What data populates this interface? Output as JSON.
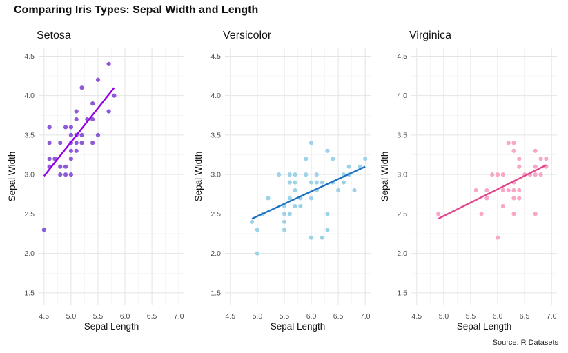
{
  "title": "Comparing Iris Types: Sepal Width and Length",
  "caption": "Source: R Datasets",
  "chart_data": [
    {
      "type": "scatter",
      "title": "Setosa",
      "xlabel": "Sepal Length",
      "ylabel": "Sepal Width",
      "xlim": [
        4.4,
        7.1
      ],
      "ylim": [
        1.35,
        4.6
      ],
      "xticks": [
        "4.5",
        "5.0",
        "5.5",
        "6.0",
        "6.5",
        "7.0"
      ],
      "yticks": [
        "1.5",
        "2.0",
        "2.5",
        "3.0",
        "3.5",
        "4.0",
        "4.5"
      ],
      "grid": true,
      "point_color": "#8e5bd8",
      "line_color": "#9400e6",
      "trend_line": {
        "x": [
          4.5,
          5.8
        ],
        "y": [
          2.98,
          4.1
        ]
      },
      "points": [
        [
          4.5,
          2.3
        ],
        [
          4.6,
          3.1
        ],
        [
          4.6,
          3.2
        ],
        [
          4.6,
          3.4
        ],
        [
          4.6,
          3.6
        ],
        [
          4.7,
          3.2
        ],
        [
          4.8,
          3.0
        ],
        [
          4.8,
          3.1
        ],
        [
          4.8,
          3.4
        ],
        [
          4.9,
          3.0
        ],
        [
          4.9,
          3.1
        ],
        [
          4.9,
          3.6
        ],
        [
          5.0,
          3.0
        ],
        [
          5.0,
          3.2
        ],
        [
          5.0,
          3.3
        ],
        [
          5.0,
          3.4
        ],
        [
          5.0,
          3.5
        ],
        [
          5.0,
          3.6
        ],
        [
          5.1,
          3.3
        ],
        [
          5.1,
          3.4
        ],
        [
          5.1,
          3.5
        ],
        [
          5.1,
          3.7
        ],
        [
          5.1,
          3.8
        ],
        [
          5.2,
          3.4
        ],
        [
          5.2,
          3.5
        ],
        [
          5.2,
          4.1
        ],
        [
          5.3,
          3.7
        ],
        [
          5.4,
          3.4
        ],
        [
          5.4,
          3.7
        ],
        [
          5.4,
          3.9
        ],
        [
          5.5,
          3.5
        ],
        [
          5.5,
          4.2
        ],
        [
          5.7,
          3.8
        ],
        [
          5.7,
          4.4
        ],
        [
          5.8,
          4.0
        ]
      ]
    },
    {
      "type": "scatter",
      "title": "Versicolor",
      "xlabel": "Sepal Length",
      "ylabel": "Sepal Width",
      "xlim": [
        4.4,
        7.1
      ],
      "ylim": [
        1.35,
        4.6
      ],
      "xticks": [
        "4.5",
        "5.0",
        "5.5",
        "6.0",
        "6.5",
        "7.0"
      ],
      "yticks": [
        "1.5",
        "2.0",
        "2.5",
        "3.0",
        "3.5",
        "4.0",
        "4.5"
      ],
      "grid": true,
      "point_color": "#9dd2e8",
      "line_color": "#1a72c0",
      "trend_line": {
        "x": [
          4.9,
          7.0
        ],
        "y": [
          2.44,
          3.1
        ]
      },
      "points": [
        [
          4.9,
          2.4
        ],
        [
          5.0,
          2.0
        ],
        [
          5.0,
          2.3
        ],
        [
          5.1,
          2.5
        ],
        [
          5.2,
          2.7
        ],
        [
          5.4,
          3.0
        ],
        [
          5.5,
          2.3
        ],
        [
          5.5,
          2.4
        ],
        [
          5.5,
          2.5
        ],
        [
          5.5,
          2.6
        ],
        [
          5.6,
          2.5
        ],
        [
          5.6,
          2.7
        ],
        [
          5.6,
          2.9
        ],
        [
          5.6,
          3.0
        ],
        [
          5.7,
          2.6
        ],
        [
          5.7,
          2.8
        ],
        [
          5.7,
          2.9
        ],
        [
          5.7,
          3.0
        ],
        [
          5.8,
          2.6
        ],
        [
          5.8,
          2.7
        ],
        [
          5.9,
          3.0
        ],
        [
          5.9,
          3.2
        ],
        [
          6.0,
          2.2
        ],
        [
          6.0,
          2.7
        ],
        [
          6.0,
          2.9
        ],
        [
          6.0,
          3.4
        ],
        [
          6.1,
          2.8
        ],
        [
          6.1,
          2.9
        ],
        [
          6.1,
          3.0
        ],
        [
          6.2,
          2.2
        ],
        [
          6.2,
          2.9
        ],
        [
          6.3,
          2.3
        ],
        [
          6.3,
          2.5
        ],
        [
          6.3,
          3.3
        ],
        [
          6.4,
          2.9
        ],
        [
          6.4,
          3.2
        ],
        [
          6.5,
          2.8
        ],
        [
          6.6,
          2.9
        ],
        [
          6.6,
          3.0
        ],
        [
          6.7,
          3.0
        ],
        [
          6.7,
          3.1
        ],
        [
          6.8,
          2.8
        ],
        [
          6.9,
          3.1
        ],
        [
          7.0,
          3.2
        ]
      ]
    },
    {
      "type": "scatter",
      "title": "Virginica",
      "xlabel": "Sepal Length",
      "ylabel": "Sepal Width",
      "xlim": [
        4.4,
        7.1
      ],
      "ylim": [
        1.35,
        4.6
      ],
      "xticks": [
        "4.5",
        "5.0",
        "5.5",
        "6.0",
        "6.5",
        "7.0"
      ],
      "yticks": [
        "1.5",
        "2.0",
        "2.5",
        "3.0",
        "3.5",
        "4.0",
        "4.5"
      ],
      "grid": true,
      "point_color": "#f7a8c6",
      "line_color": "#e2458a",
      "trend_line": {
        "x": [
          4.9,
          6.9
        ],
        "y": [
          2.44,
          3.12
        ]
      },
      "points": [
        [
          4.9,
          2.5
        ],
        [
          5.6,
          2.8
        ],
        [
          5.7,
          2.5
        ],
        [
          5.8,
          2.7
        ],
        [
          5.8,
          2.8
        ],
        [
          5.9,
          3.0
        ],
        [
          6.0,
          2.2
        ],
        [
          6.0,
          3.0
        ],
        [
          6.1,
          2.6
        ],
        [
          6.1,
          2.8
        ],
        [
          6.1,
          3.0
        ],
        [
          6.2,
          2.8
        ],
        [
          6.2,
          3.4
        ],
        [
          6.3,
          2.5
        ],
        [
          6.3,
          2.7
        ],
        [
          6.3,
          2.8
        ],
        [
          6.3,
          2.9
        ],
        [
          6.3,
          3.3
        ],
        [
          6.3,
          3.4
        ],
        [
          6.4,
          2.7
        ],
        [
          6.4,
          2.8
        ],
        [
          6.4,
          3.1
        ],
        [
          6.4,
          3.2
        ],
        [
          6.5,
          3.0
        ],
        [
          6.6,
          3.0
        ],
        [
          6.7,
          2.5
        ],
        [
          6.7,
          3.0
        ],
        [
          6.7,
          3.1
        ],
        [
          6.7,
          3.3
        ],
        [
          6.8,
          3.0
        ],
        [
          6.8,
          3.2
        ],
        [
          6.9,
          3.1
        ],
        [
          6.9,
          3.2
        ]
      ]
    }
  ]
}
